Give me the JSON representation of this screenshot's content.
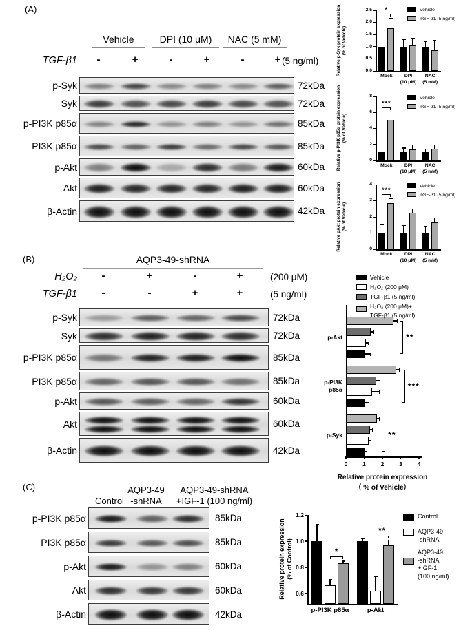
{
  "figure": {
    "panel_a": {
      "label": "(A)",
      "group_headers": [
        "Vehicle",
        "DPI (10 μM)",
        "NAC (5 mM)"
      ],
      "treatment": {
        "label": "TGF-β1",
        "signs": [
          "-",
          "+",
          "-",
          "+",
          "-",
          "+"
        ],
        "dose": "(5 ng/ml)"
      },
      "blots": [
        {
          "protein": "p-Syk",
          "kda": "72kDa",
          "bands": [
            0.45,
            0.75,
            0.4,
            0.45,
            0.4,
            0.62
          ]
        },
        {
          "protein": "Syk",
          "kda": "72kDa",
          "bands": [
            0.78,
            0.68,
            0.72,
            0.78,
            0.72,
            0.68
          ]
        },
        {
          "protein": "p-PI3K p85α",
          "kda": "85kDa",
          "bands": [
            0.42,
            0.88,
            0.35,
            0.45,
            0.35,
            0.52
          ]
        },
        {
          "protein": "PI3K p85α",
          "kda": "85kDa",
          "bands": [
            0.72,
            0.6,
            0.78,
            0.55,
            0.72,
            0.65
          ]
        },
        {
          "protein": "p-Akt",
          "kda": "60kDa",
          "bands": [
            0.45,
            1.0,
            0.25,
            0.85,
            0.48,
            0.95
          ]
        },
        {
          "protein": "Akt",
          "kda": "60kDa",
          "bands": [
            0.92,
            0.88,
            0.88,
            0.88,
            0.92,
            0.92
          ]
        },
        {
          "protein": "β-Actin",
          "kda": "42kDa",
          "bands": [
            1.0,
            1.0,
            1.0,
            1.0,
            1.0,
            1.0
          ]
        }
      ]
    },
    "panel_b": {
      "label": "(B)",
      "header": "AQP3-49-shRNA",
      "treatments": [
        {
          "label": "H₂O₂",
          "signs": [
            "-",
            "+",
            "-",
            "+"
          ],
          "dose": "(200 μM)"
        },
        {
          "label": "TGF-β1",
          "signs": [
            "-",
            "-",
            "+",
            "+"
          ],
          "dose": "(5 ng/ml)"
        }
      ],
      "blots": [
        {
          "protein": "p-Syk",
          "kda": "72kDa",
          "bands": [
            0.32,
            0.62,
            0.58,
            0.72
          ]
        },
        {
          "protein": "Syk",
          "kda": "72kDa",
          "bands": [
            0.85,
            0.9,
            0.9,
            0.85
          ]
        },
        {
          "protein": "p-PI3K p85α",
          "kda": "85kDa",
          "bands": [
            0.5,
            0.9,
            0.92,
            1.0
          ]
        },
        {
          "protein": "PI3K p85α",
          "kda": "85kDa",
          "bands": [
            0.58,
            0.65,
            0.65,
            0.52
          ]
        },
        {
          "protein": "p-Akt",
          "kda": "60kDa",
          "bands": [
            0.65,
            0.62,
            0.58,
            0.82
          ]
        },
        {
          "protein": "Akt",
          "kda": "60kDa",
          "bands": [
            1.0,
            1.0,
            1.0,
            1.0
          ],
          "double": true
        },
        {
          "protein": "β-Actin",
          "kda": "42kDa",
          "bands": [
            1.0,
            1.0,
            1.0,
            1.0
          ]
        }
      ]
    },
    "panel_c": {
      "label": "(C)",
      "col_headers": [
        [
          "Control"
        ],
        [
          "AQP3-49",
          "-shRNA"
        ],
        [
          "AQP3-49-shRNA",
          "+IGF-1 (100 ng/ml)"
        ]
      ],
      "blots": [
        {
          "protein": "p-PI3K p85α",
          "kda": "85kDa",
          "bands": [
            0.95,
            0.6,
            0.85
          ]
        },
        {
          "protein": "PI3K p85α",
          "kda": "85kDa",
          "bands": [
            0.8,
            0.65,
            0.7
          ]
        },
        {
          "protein": "p-Akt",
          "kda": "60kDa",
          "bands": [
            0.95,
            0.35,
            0.45
          ]
        },
        {
          "protein": "Akt",
          "kda": "60kDa",
          "bands": [
            0.85,
            0.8,
            0.8
          ]
        },
        {
          "protein": "β-Actin",
          "kda": "42kDa",
          "bands": [
            1.0,
            1.0,
            1.0
          ]
        }
      ]
    }
  },
  "chart_data": [
    {
      "id": "a_psyk",
      "type": "bar",
      "ylabel": "Relative p-Syk protein expression\n(% of Vehicle)",
      "categories": [
        [
          "Mock"
        ],
        [
          "DPI",
          "(10 μM)"
        ],
        [
          "NAC",
          "(5 mM)"
        ]
      ],
      "ylim": [
        0,
        2.5
      ],
      "yticks": [
        "0.0",
        "0.5",
        "1.0",
        "1.5",
        "2.0",
        "2.5"
      ],
      "grid": false,
      "legend_position": "top-right",
      "series": [
        {
          "name": "Vehicle",
          "color": "#000000",
          "values": [
            1.0,
            1.0,
            1.0
          ],
          "errors": [
            0.33,
            0.3,
            0.22
          ]
        },
        {
          "name": "TGF-β1 (5 ng/ml)",
          "color": "#a9a9a9",
          "values": [
            1.75,
            1.05,
            0.85
          ],
          "errors": [
            0.45,
            0.32,
            0.42
          ]
        }
      ],
      "significance": [
        {
          "group": 0,
          "bars": [
            0,
            1
          ],
          "label": "*"
        }
      ]
    },
    {
      "id": "a_ppi3k",
      "type": "bar",
      "ylabel": "Relative p-PI3K p85α protein expression\n(% of Vehicle)",
      "categories": [
        [
          "Mock"
        ],
        [
          "DPI",
          "(10 μM)"
        ],
        [
          "NAC",
          "(5 mM)"
        ]
      ],
      "ylim": [
        0,
        8
      ],
      "yticks": [
        "0",
        "2",
        "4",
        "6",
        "8"
      ],
      "grid": false,
      "legend_position": "top-right",
      "series": [
        {
          "name": "Vehicle",
          "color": "#000000",
          "values": [
            1.0,
            1.0,
            1.0
          ],
          "errors": [
            0.5,
            0.6,
            0.5
          ]
        },
        {
          "name": "TGF-β1 (5 ng/ml)",
          "color": "#a9a9a9",
          "values": [
            5.1,
            1.35,
            1.45
          ],
          "errors": [
            1.0,
            0.65,
            0.55
          ]
        }
      ],
      "significance": [
        {
          "group": 0,
          "bars": [
            0,
            1
          ],
          "label": "***"
        }
      ]
    },
    {
      "id": "a_pakt",
      "type": "bar",
      "ylabel": "Relative pAkt protein expression\n(% of Vehicle)",
      "categories": [
        [
          "Mock"
        ],
        [
          "DPI",
          "(10 μM)"
        ],
        [
          "NAC",
          "(5 mM)"
        ]
      ],
      "ylim": [
        0,
        4
      ],
      "yticks": [
        "0",
        "1",
        "2",
        "3",
        "4"
      ],
      "grid": false,
      "legend_position": "top-right",
      "series": [
        {
          "name": "Vehicle",
          "color": "#000000",
          "values": [
            1.0,
            1.0,
            1.0
          ],
          "errors": [
            0.55,
            0.5,
            0.45
          ]
        },
        {
          "name": "TGF-β1 (5 ng/ml)",
          "color": "#a9a9a9",
          "values": [
            2.85,
            2.25,
            1.65
          ],
          "errors": [
            0.3,
            0.25,
            0.3
          ]
        }
      ],
      "significance": [
        {
          "group": 0,
          "bars": [
            0,
            1
          ],
          "label": "***"
        }
      ]
    },
    {
      "id": "b_hbar",
      "type": "bar-horizontal",
      "xlabel": "Relative protein expression\n（ % of Vehicle）",
      "categories": [
        [
          "p-Akt"
        ],
        [
          "p-PI3K",
          "p85α"
        ],
        [
          "p-Syk"
        ]
      ],
      "xlim": [
        0,
        4
      ],
      "xticks": [
        "0",
        "1",
        "2",
        "3",
        "4"
      ],
      "grid": false,
      "legend_position": "top",
      "series": [
        {
          "name": "Vehicle",
          "color": "#000000",
          "values": [
            1.0,
            1.0,
            1.0
          ],
          "errors": [
            0.3,
            0.25,
            0.12
          ]
        },
        {
          "name": "H₂O₂ (200 μM)",
          "color": "#ffffff",
          "values": [
            1.1,
            1.45,
            1.25
          ],
          "errors": [
            0.12,
            0.35,
            0.1
          ]
        },
        {
          "name": "TGF-β1 (5 ng/ml)",
          "color": "#6e6e6e",
          "values": [
            1.35,
            1.65,
            1.3
          ],
          "errors": [
            0.15,
            0.2,
            0.12
          ]
        },
        {
          "name": "H₂O₂ (200 μM)+\nTGF-β1 (5 ng/ml)",
          "color": "#b4b4b4",
          "values": [
            2.6,
            2.75,
            1.7
          ],
          "errors": [
            0.2,
            0.15,
            0.12
          ]
        }
      ],
      "significance": [
        {
          "group": 0,
          "label": "**"
        },
        {
          "group": 1,
          "label": "***"
        },
        {
          "group": 2,
          "label": "**"
        }
      ]
    },
    {
      "id": "c_bar",
      "type": "bar",
      "ylabel": "Relative protein expression\n(% of Control)",
      "categories": [
        [
          "p-PI3K p85α"
        ],
        [
          "p-Akt"
        ]
      ],
      "ylim": [
        0.52,
        1.2
      ],
      "yticks": [
        "0.6",
        "0.8",
        "1.0",
        "1.2"
      ],
      "grid": false,
      "legend_position": "right",
      "series": [
        {
          "name": "Control",
          "color": "#000000",
          "values": [
            1.0,
            1.0
          ],
          "errors": [
            0.13,
            0.02
          ]
        },
        {
          "name": "AQP3-49\n-shRNA",
          "color": "#ffffff",
          "values": [
            0.66,
            0.62
          ],
          "errors": [
            0.05,
            0.11
          ]
        },
        {
          "name": "AQP3-49\n-shRNA\n+IGF-1\n(100 ng/ml)",
          "color": "#9a9a9a",
          "values": [
            0.83,
            0.97
          ],
          "errors": [
            0.02,
            0.04
          ]
        }
      ],
      "significance": [
        {
          "group": 0,
          "bars": [
            1,
            2
          ],
          "label": "*"
        },
        {
          "group": 1,
          "bars": [
            1,
            2
          ],
          "label": "**"
        }
      ]
    }
  ]
}
